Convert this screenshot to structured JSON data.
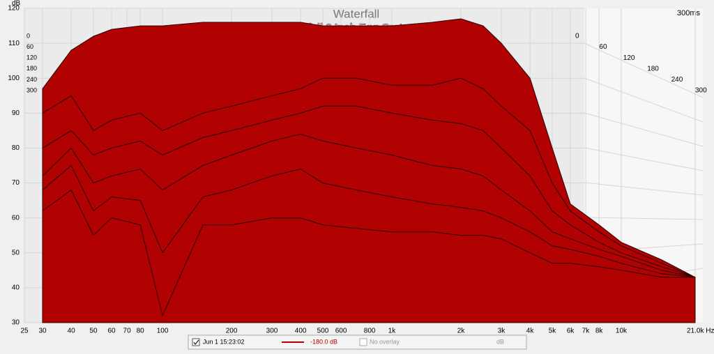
{
  "chart_data": {
    "type": "waterfall",
    "title": "Waterfall",
    "subtitle": "Waterfall 2 Inch Egg Crate OCF",
    "y_label": "dB",
    "depth_label": "300ms",
    "x": [
      30,
      40,
      50,
      60,
      80,
      100,
      150,
      200,
      300,
      400,
      500,
      700,
      1000,
      1500,
      2000,
      2500,
      3000,
      4000,
      5000,
      6000,
      8000,
      10000,
      15000,
      21000
    ],
    "series": [
      {
        "name": "0",
        "color": "#b00000",
        "values": [
          97,
          108,
          112,
          114,
          115,
          115,
          116,
          116,
          116,
          116,
          115,
          115,
          115,
          116,
          117,
          115,
          110,
          100,
          80,
          64,
          58,
          53,
          48,
          43
        ]
      },
      {
        "name": "60",
        "color": "#b00000",
        "values": [
          90,
          95,
          85,
          88,
          90,
          85,
          90,
          92,
          95,
          97,
          100,
          100,
          98,
          98,
          100,
          97,
          92,
          85,
          70,
          62,
          56,
          52,
          47,
          43
        ]
      },
      {
        "name": "120",
        "color": "#b00000",
        "values": [
          80,
          85,
          78,
          80,
          82,
          78,
          83,
          85,
          88,
          90,
          92,
          92,
          90,
          88,
          87,
          85,
          80,
          72,
          62,
          58,
          53,
          50,
          46,
          43
        ]
      },
      {
        "name": "180",
        "color": "#b00000",
        "values": [
          72,
          80,
          70,
          72,
          74,
          68,
          75,
          78,
          82,
          84,
          82,
          80,
          78,
          75,
          74,
          72,
          68,
          62,
          56,
          54,
          51,
          49,
          45,
          43
        ]
      },
      {
        "name": "240",
        "color": "#b00000",
        "values": [
          68,
          75,
          62,
          66,
          65,
          50,
          66,
          68,
          72,
          74,
          70,
          68,
          66,
          64,
          63,
          62,
          60,
          56,
          52,
          51,
          49,
          47,
          44,
          43
        ]
      },
      {
        "name": "300",
        "color": "#b00000",
        "values": [
          62,
          68,
          55,
          60,
          58,
          32,
          58,
          58,
          60,
          60,
          58,
          57,
          56,
          56,
          55,
          55,
          54,
          50,
          47,
          47,
          46,
          45,
          43,
          43
        ]
      }
    ],
    "xlim": [
      25,
      21000
    ],
    "xticks": [
      25,
      30,
      40,
      50,
      60,
      70,
      80,
      100,
      200,
      300,
      400,
      500,
      600,
      800,
      {
        "value": 1000,
        "label": "1k"
      },
      {
        "value": 2000,
        "label": "2k"
      },
      {
        "value": 3000,
        "label": "3k"
      },
      {
        "value": 4000,
        "label": "4k"
      },
      {
        "value": 5000,
        "label": "5k"
      },
      {
        "value": 6000,
        "label": "6k"
      },
      {
        "value": 7000,
        "label": "7k"
      },
      {
        "value": 8000,
        "label": "8k"
      },
      {
        "value": 10000,
        "label": "10k"
      },
      {
        "value": 21000,
        "label": "21.0k Hz"
      }
    ],
    "ylim": [
      30,
      120
    ],
    "yticks": [
      30,
      40,
      50,
      60,
      70,
      80,
      90,
      100,
      110,
      120
    ],
    "log_x": true,
    "legend": {
      "date": "Jun 1 15:23:02",
      "level": "-180.0 dB",
      "overlay": "No overlay",
      "unit": "dB"
    }
  }
}
